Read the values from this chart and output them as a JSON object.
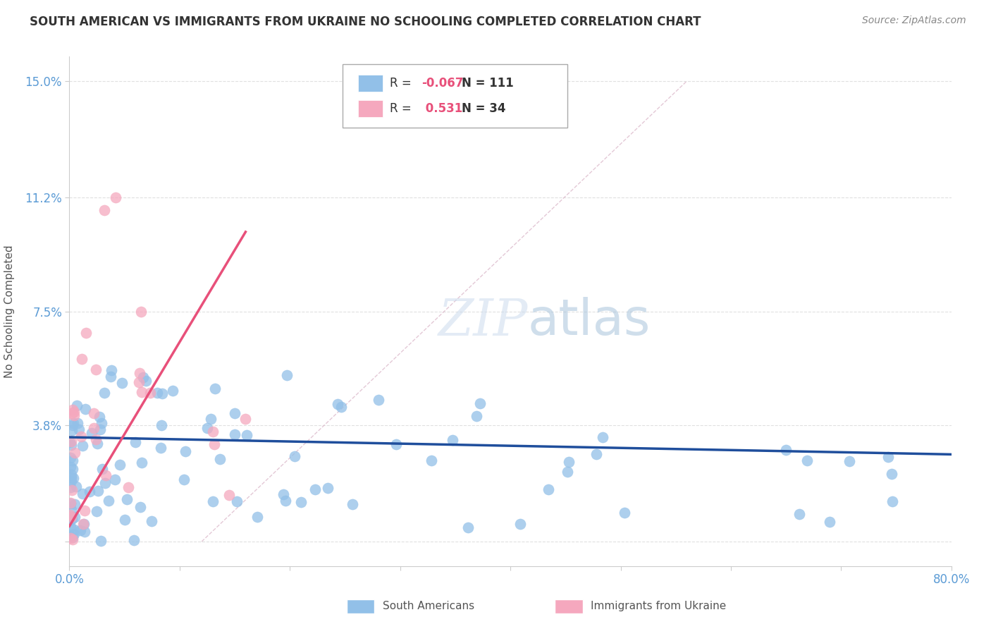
{
  "title": "SOUTH AMERICAN VS IMMIGRANTS FROM UKRAINE NO SCHOOLING COMPLETED CORRELATION CHART",
  "source": "Source: ZipAtlas.com",
  "ylabel": "No Schooling Completed",
  "xlim": [
    0.0,
    0.8
  ],
  "ylim": [
    -0.008,
    0.158
  ],
  "yticks": [
    0.0,
    0.038,
    0.075,
    0.112,
    0.15
  ],
  "ytick_labels": [
    "",
    "3.8%",
    "7.5%",
    "11.2%",
    "15.0%"
  ],
  "r1": -0.067,
  "n1": 111,
  "r2": 0.531,
  "n2": 34,
  "color_sa": "#92C0E8",
  "color_uk": "#F5A8BE",
  "line_color_sa": "#1F4E9C",
  "line_color_uk": "#E8507A",
  "background_color": "#FFFFFF",
  "grid_color": "#DDDDDD",
  "title_color": "#333333",
  "axis_label_color": "#5B9BD5"
}
